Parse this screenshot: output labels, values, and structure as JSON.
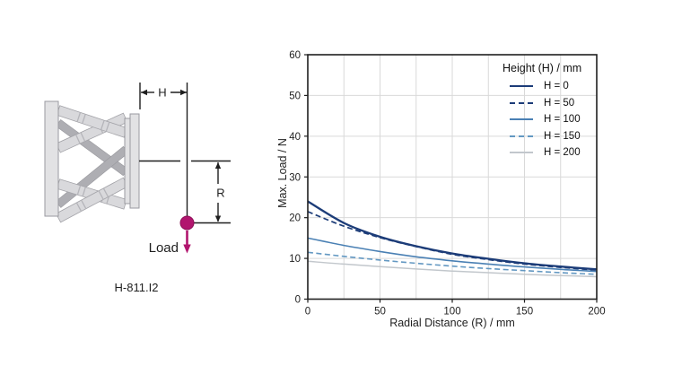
{
  "diagram": {
    "model": "H-811.I2",
    "dim_h": "H",
    "dim_r": "R",
    "load": "Load",
    "load_color": "#b1156e"
  },
  "chart_data": {
    "type": "line",
    "title": "",
    "xlabel": "Radial Distance (R) / mm",
    "ylabel": "Max. Load / N",
    "xlim": [
      0,
      200
    ],
    "ylim": [
      0,
      60
    ],
    "x_ticks": [
      0,
      50,
      100,
      150,
      200
    ],
    "y_ticks": [
      0,
      10,
      20,
      30,
      40,
      50,
      60
    ],
    "x_grid_step": 25,
    "y_grid_step": 10,
    "grid": true,
    "grid_color": "#d9d9d9",
    "frame_color": "#1f1f1f",
    "legend_title": "Height (H) / mm",
    "legend_position": "top-right-inside",
    "x": [
      0,
      25,
      50,
      75,
      100,
      125,
      150,
      175,
      200
    ],
    "series": [
      {
        "label": "H = 0",
        "color": "#1c3c78",
        "style": "solid",
        "width": 2.3,
        "values": [
          24.0,
          18.7,
          15.3,
          13.0,
          11.2,
          9.9,
          8.8,
          8.0,
          7.3
        ]
      },
      {
        "label": "H = 50",
        "color": "#1c3c78",
        "style": "dashed",
        "width": 1.7,
        "values": [
          21.5,
          17.9,
          15.1,
          12.9,
          11.0,
          9.7,
          8.6,
          7.8,
          7.1
        ]
      },
      {
        "label": "H = 100",
        "color": "#4a80b4",
        "style": "solid",
        "width": 1.6,
        "values": [
          15.0,
          13.2,
          11.7,
          10.4,
          9.4,
          8.6,
          7.9,
          7.3,
          6.8
        ]
      },
      {
        "label": "H = 150",
        "color": "#6398c2",
        "style": "dashed",
        "width": 1.6,
        "values": [
          11.5,
          10.5,
          9.6,
          8.8,
          8.1,
          7.5,
          7.0,
          6.5,
          6.1
        ]
      },
      {
        "label": "H = 200",
        "color": "#c2c7cc",
        "style": "solid",
        "width": 1.5,
        "values": [
          9.3,
          8.6,
          8.0,
          7.4,
          6.9,
          6.5,
          6.1,
          5.8,
          5.5
        ]
      }
    ]
  }
}
